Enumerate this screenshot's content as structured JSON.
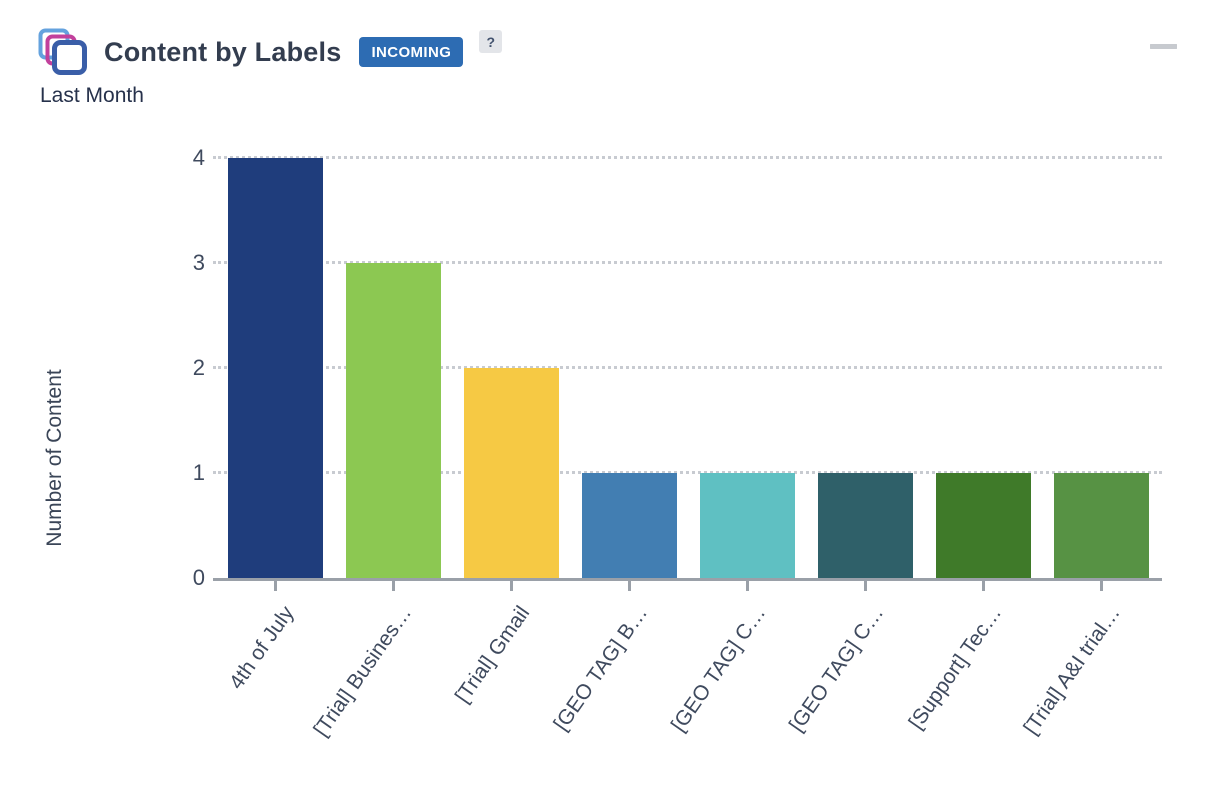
{
  "header": {
    "title": "Content by Labels",
    "badge": "INCOMING",
    "help_label": "?",
    "subtitle": "Last Month"
  },
  "colors": {
    "badge_bg": "#2d6cb3",
    "icon_back": "#64a2de",
    "icon_middle": "#c2409c",
    "icon_front": "#3a5ea8",
    "gridline": "#c8cbd1",
    "axis": "#9aa0a8",
    "axis_text": "#3f4a5e"
  },
  "chart_data": {
    "type": "bar",
    "title": "Content by Labels",
    "subtitle": "Last Month",
    "categories": [
      "4th of July",
      "[Trial] Busines…",
      "[Trial] Gmail",
      "[GEO TAG] B…",
      "[GEO TAG] C…",
      "[GEO TAG] C…",
      "[Support] Tec…",
      "[Trial] A&I trial…"
    ],
    "values": [
      4,
      3,
      2,
      1,
      1,
      1,
      1,
      1
    ],
    "colors": [
      "#1f3d7c",
      "#8cc852",
      "#f6c944",
      "#427eb2",
      "#5fc0c2",
      "#2f6069",
      "#3f7a29",
      "#579244"
    ],
    "xlabel": "",
    "ylabel": "Number of Content",
    "ylim": [
      0,
      4
    ],
    "yticks": [
      0,
      1,
      2,
      3,
      4
    ],
    "grid": "horizontal-dotted",
    "legend": "none"
  }
}
